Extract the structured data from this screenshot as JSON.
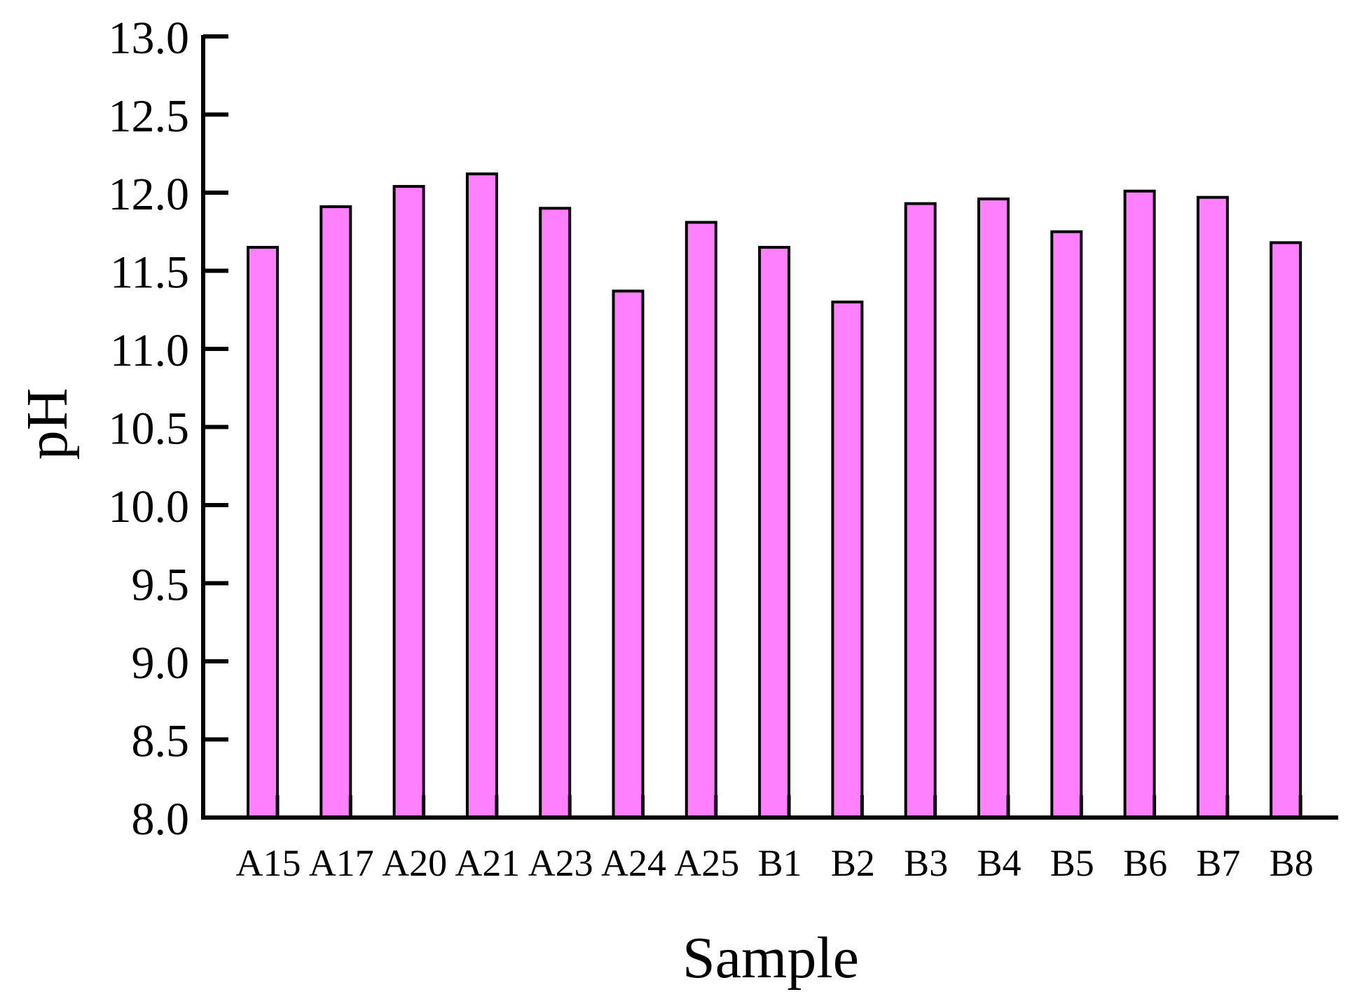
{
  "chart_data": {
    "type": "bar",
    "title": "",
    "xlabel": "Sample",
    "ylabel": "pH",
    "ylim": [
      8.0,
      13.0
    ],
    "yticks": [
      "8.0",
      "8.5",
      "9.0",
      "9.5",
      "10.0",
      "10.5",
      "11.0",
      "11.5",
      "12.0",
      "12.5",
      "13.0"
    ],
    "grid": false,
    "legend": null,
    "categories": [
      "A15",
      "A17",
      "A20",
      "A21",
      "A23",
      "A24",
      "A25",
      "B1",
      "B2",
      "B3",
      "B4",
      "B5",
      "B6",
      "B7",
      "B8"
    ],
    "values": [
      11.65,
      11.91,
      12.04,
      12.12,
      11.9,
      11.37,
      11.81,
      11.65,
      11.3,
      11.93,
      11.96,
      11.75,
      12.01,
      11.97,
      11.68
    ],
    "bar_color": "#ff80ff",
    "bar_edge_color": "#000000"
  }
}
